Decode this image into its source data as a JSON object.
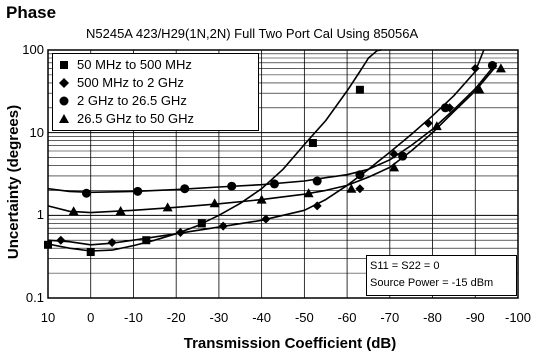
{
  "page_heading": "Phase",
  "chart_data": {
    "type": "line",
    "title": "N5245A 423/H29(1N,2N) Full Two Port Cal Using 85056A",
    "xlabel": "Transmission Coefficient (dB)",
    "ylabel": "Uncertainty (degrees)",
    "xlim": [
      10,
      -100
    ],
    "x_reversed": true,
    "xticks": [
      "10",
      "0",
      "-10",
      "-20",
      "-30",
      "-40",
      "-50",
      "-60",
      "-70",
      "-80",
      "-90",
      "-100"
    ],
    "ylim": [
      0.1,
      100
    ],
    "yscale": "log",
    "yticks": [
      "100",
      "10",
      "1",
      "0.1"
    ],
    "grid": true,
    "legend_position": "top-left",
    "series": [
      {
        "name": "50 MHz to 500 MHz",
        "marker": "square",
        "x": [
          10,
          5,
          0,
          -5,
          -10,
          -15,
          -20,
          -25,
          -30,
          -35,
          -40,
          -45,
          -50,
          -55,
          -60,
          -63,
          -65,
          -67,
          -68
        ],
        "y": [
          0.45,
          0.4,
          0.37,
          0.38,
          0.43,
          0.5,
          0.6,
          0.75,
          1.0,
          1.4,
          2.1,
          3.6,
          7.2,
          14,
          32,
          55,
          80,
          98,
          100
        ],
        "markers_x": [
          10,
          0,
          -13,
          -26,
          -52,
          -63
        ],
        "markers_y": [
          0.44,
          0.36,
          0.5,
          0.8,
          7.5,
          33
        ]
      },
      {
        "name": "500 MHz to 2 GHz",
        "marker": "diamond",
        "x": [
          10,
          5,
          0,
          -5,
          -10,
          -20,
          -30,
          -40,
          -45,
          -50,
          -55,
          -60,
          -65,
          -70,
          -75,
          -80,
          -85,
          -90,
          -92
        ],
        "y": [
          0.5,
          0.48,
          0.44,
          0.46,
          0.5,
          0.6,
          0.72,
          0.87,
          1.0,
          1.15,
          1.55,
          2.3,
          3.6,
          5.8,
          9.5,
          16,
          28,
          55,
          100
        ],
        "markers_x": [
          7,
          -5,
          -21,
          -31,
          -41,
          -53,
          -63,
          -71,
          -79,
          -84,
          -90
        ],
        "markers_y": [
          0.5,
          0.47,
          0.62,
          0.74,
          0.9,
          1.3,
          2.1,
          5.5,
          13,
          20,
          60
        ]
      },
      {
        "name": "2 GHz to 26.5 GHz",
        "marker": "circle",
        "x": [
          10,
          5,
          0,
          -10,
          -20,
          -30,
          -40,
          -50,
          -55,
          -60,
          -65,
          -70,
          -75,
          -80,
          -85,
          -90,
          -95
        ],
        "y": [
          2.1,
          1.95,
          1.9,
          1.95,
          2.05,
          2.2,
          2.35,
          2.6,
          2.85,
          3.1,
          3.6,
          4.7,
          7.0,
          11,
          19,
          34,
          70
        ],
        "markers_x": [
          1,
          -11,
          -22,
          -33,
          -43,
          -53,
          -63,
          -73,
          -83,
          -94
        ],
        "markers_y": [
          1.85,
          1.95,
          2.1,
          2.25,
          2.4,
          2.6,
          3.1,
          5.2,
          20,
          65
        ]
      },
      {
        "name": "26.5 GHz to 50 GHz",
        "marker": "triangle",
        "x": [
          10,
          5,
          0,
          -10,
          -20,
          -30,
          -40,
          -50,
          -55,
          -60,
          -65,
          -70,
          -75,
          -80,
          -85,
          -90,
          -95
        ],
        "y": [
          1.3,
          1.12,
          1.08,
          1.15,
          1.25,
          1.38,
          1.55,
          1.8,
          2.0,
          2.3,
          2.9,
          3.8,
          6.0,
          10,
          18,
          32,
          65
        ],
        "markers_x": [
          4,
          -7,
          -18,
          -29,
          -40,
          -51,
          -61,
          -71,
          -81,
          -91,
          -96
        ],
        "markers_y": [
          1.12,
          1.13,
          1.25,
          1.4,
          1.55,
          1.85,
          2.1,
          3.8,
          12,
          33,
          60
        ]
      }
    ],
    "annotation_lines": [
      "S11 = S22 = 0",
      "Source Power = -15 dBm"
    ]
  }
}
